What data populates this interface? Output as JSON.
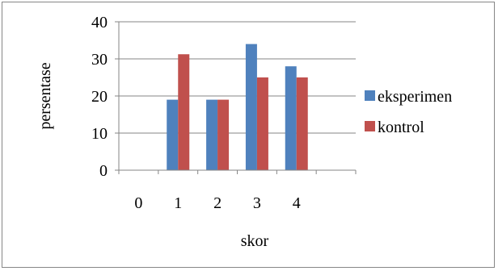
{
  "chart_data": {
    "type": "bar",
    "title": "",
    "xlabel": "skor",
    "ylabel": "persentase",
    "categories": [
      "0",
      "1",
      "2",
      "3",
      "4",
      ""
    ],
    "ylim": [
      0,
      40
    ],
    "yticks": [
      0,
      10,
      20,
      30,
      40
    ],
    "grid": true,
    "legend_position": "right",
    "series": [
      {
        "name": "eksperimen",
        "color": "#4f81bd",
        "values": [
          0,
          19,
          19,
          34,
          28,
          0
        ]
      },
      {
        "name": "kontrol",
        "color": "#c0504d",
        "values": [
          0,
          31.25,
          19,
          25,
          25,
          0
        ]
      }
    ]
  }
}
